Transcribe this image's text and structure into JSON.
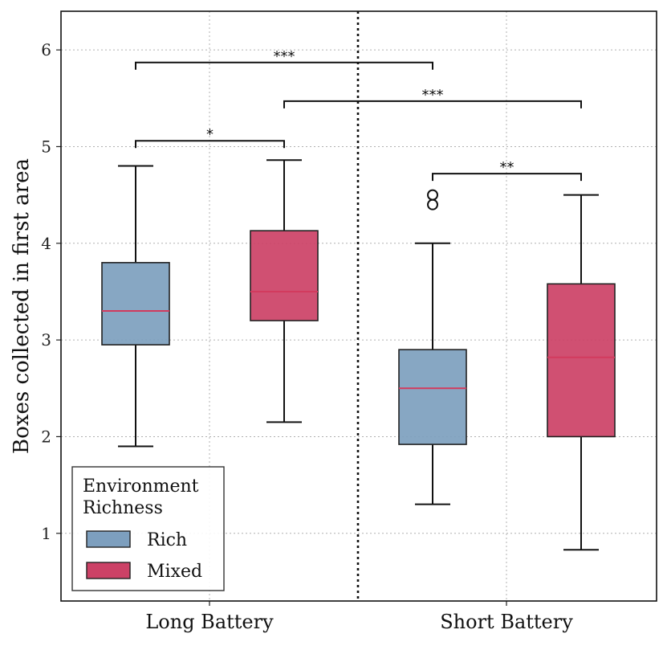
{
  "chart_data": {
    "type": "box",
    "ylabel": "Boxes collected in first area",
    "xlabel": "",
    "ylim": [
      0.3,
      6.4
    ],
    "yticks": [
      1,
      2,
      3,
      4,
      5,
      6
    ],
    "grid": true,
    "categories": [
      "Long Battery",
      "Short Battery"
    ],
    "legend": {
      "title": "Environment\nRichness",
      "position": "bottom-left",
      "entries": [
        {
          "name": "Rich",
          "color": "#7d9fbe"
        },
        {
          "name": "Mixed",
          "color": "#cc4166"
        }
      ]
    },
    "boxes": [
      {
        "category": "Long Battery",
        "series": "Rich",
        "whisker_low": 1.9,
        "q1": 2.95,
        "median": 3.3,
        "q3": 3.8,
        "whisker_high": 4.8,
        "outliers": []
      },
      {
        "category": "Long Battery",
        "series": "Mixed",
        "whisker_low": 2.15,
        "q1": 3.2,
        "median": 3.5,
        "q3": 4.13,
        "whisker_high": 4.86,
        "outliers": []
      },
      {
        "category": "Short Battery",
        "series": "Rich",
        "whisker_low": 1.3,
        "q1": 1.92,
        "median": 2.5,
        "q3": 2.9,
        "whisker_high": 4.0,
        "outliers": [
          4.4,
          4.5
        ]
      },
      {
        "category": "Short Battery",
        "series": "Mixed",
        "whisker_low": 0.83,
        "q1": 2.0,
        "median": 2.82,
        "q3": 3.58,
        "whisker_high": 4.5,
        "outliers": []
      }
    ],
    "significance": [
      {
        "from": 0,
        "to": 2,
        "level": 5.87,
        "label": "***"
      },
      {
        "from": 1,
        "to": 3,
        "level": 5.47,
        "label": "***"
      },
      {
        "from": 0,
        "to": 1,
        "level": 5.06,
        "label": "*"
      },
      {
        "from": 2,
        "to": 3,
        "level": 4.72,
        "label": "**"
      }
    ],
    "colors": {
      "rich_fill": "#7d9fbe",
      "mixed_fill": "#cc4166",
      "median_line": "#d23b5e",
      "edge": "#222222",
      "grid": "#b0b0b0"
    }
  }
}
